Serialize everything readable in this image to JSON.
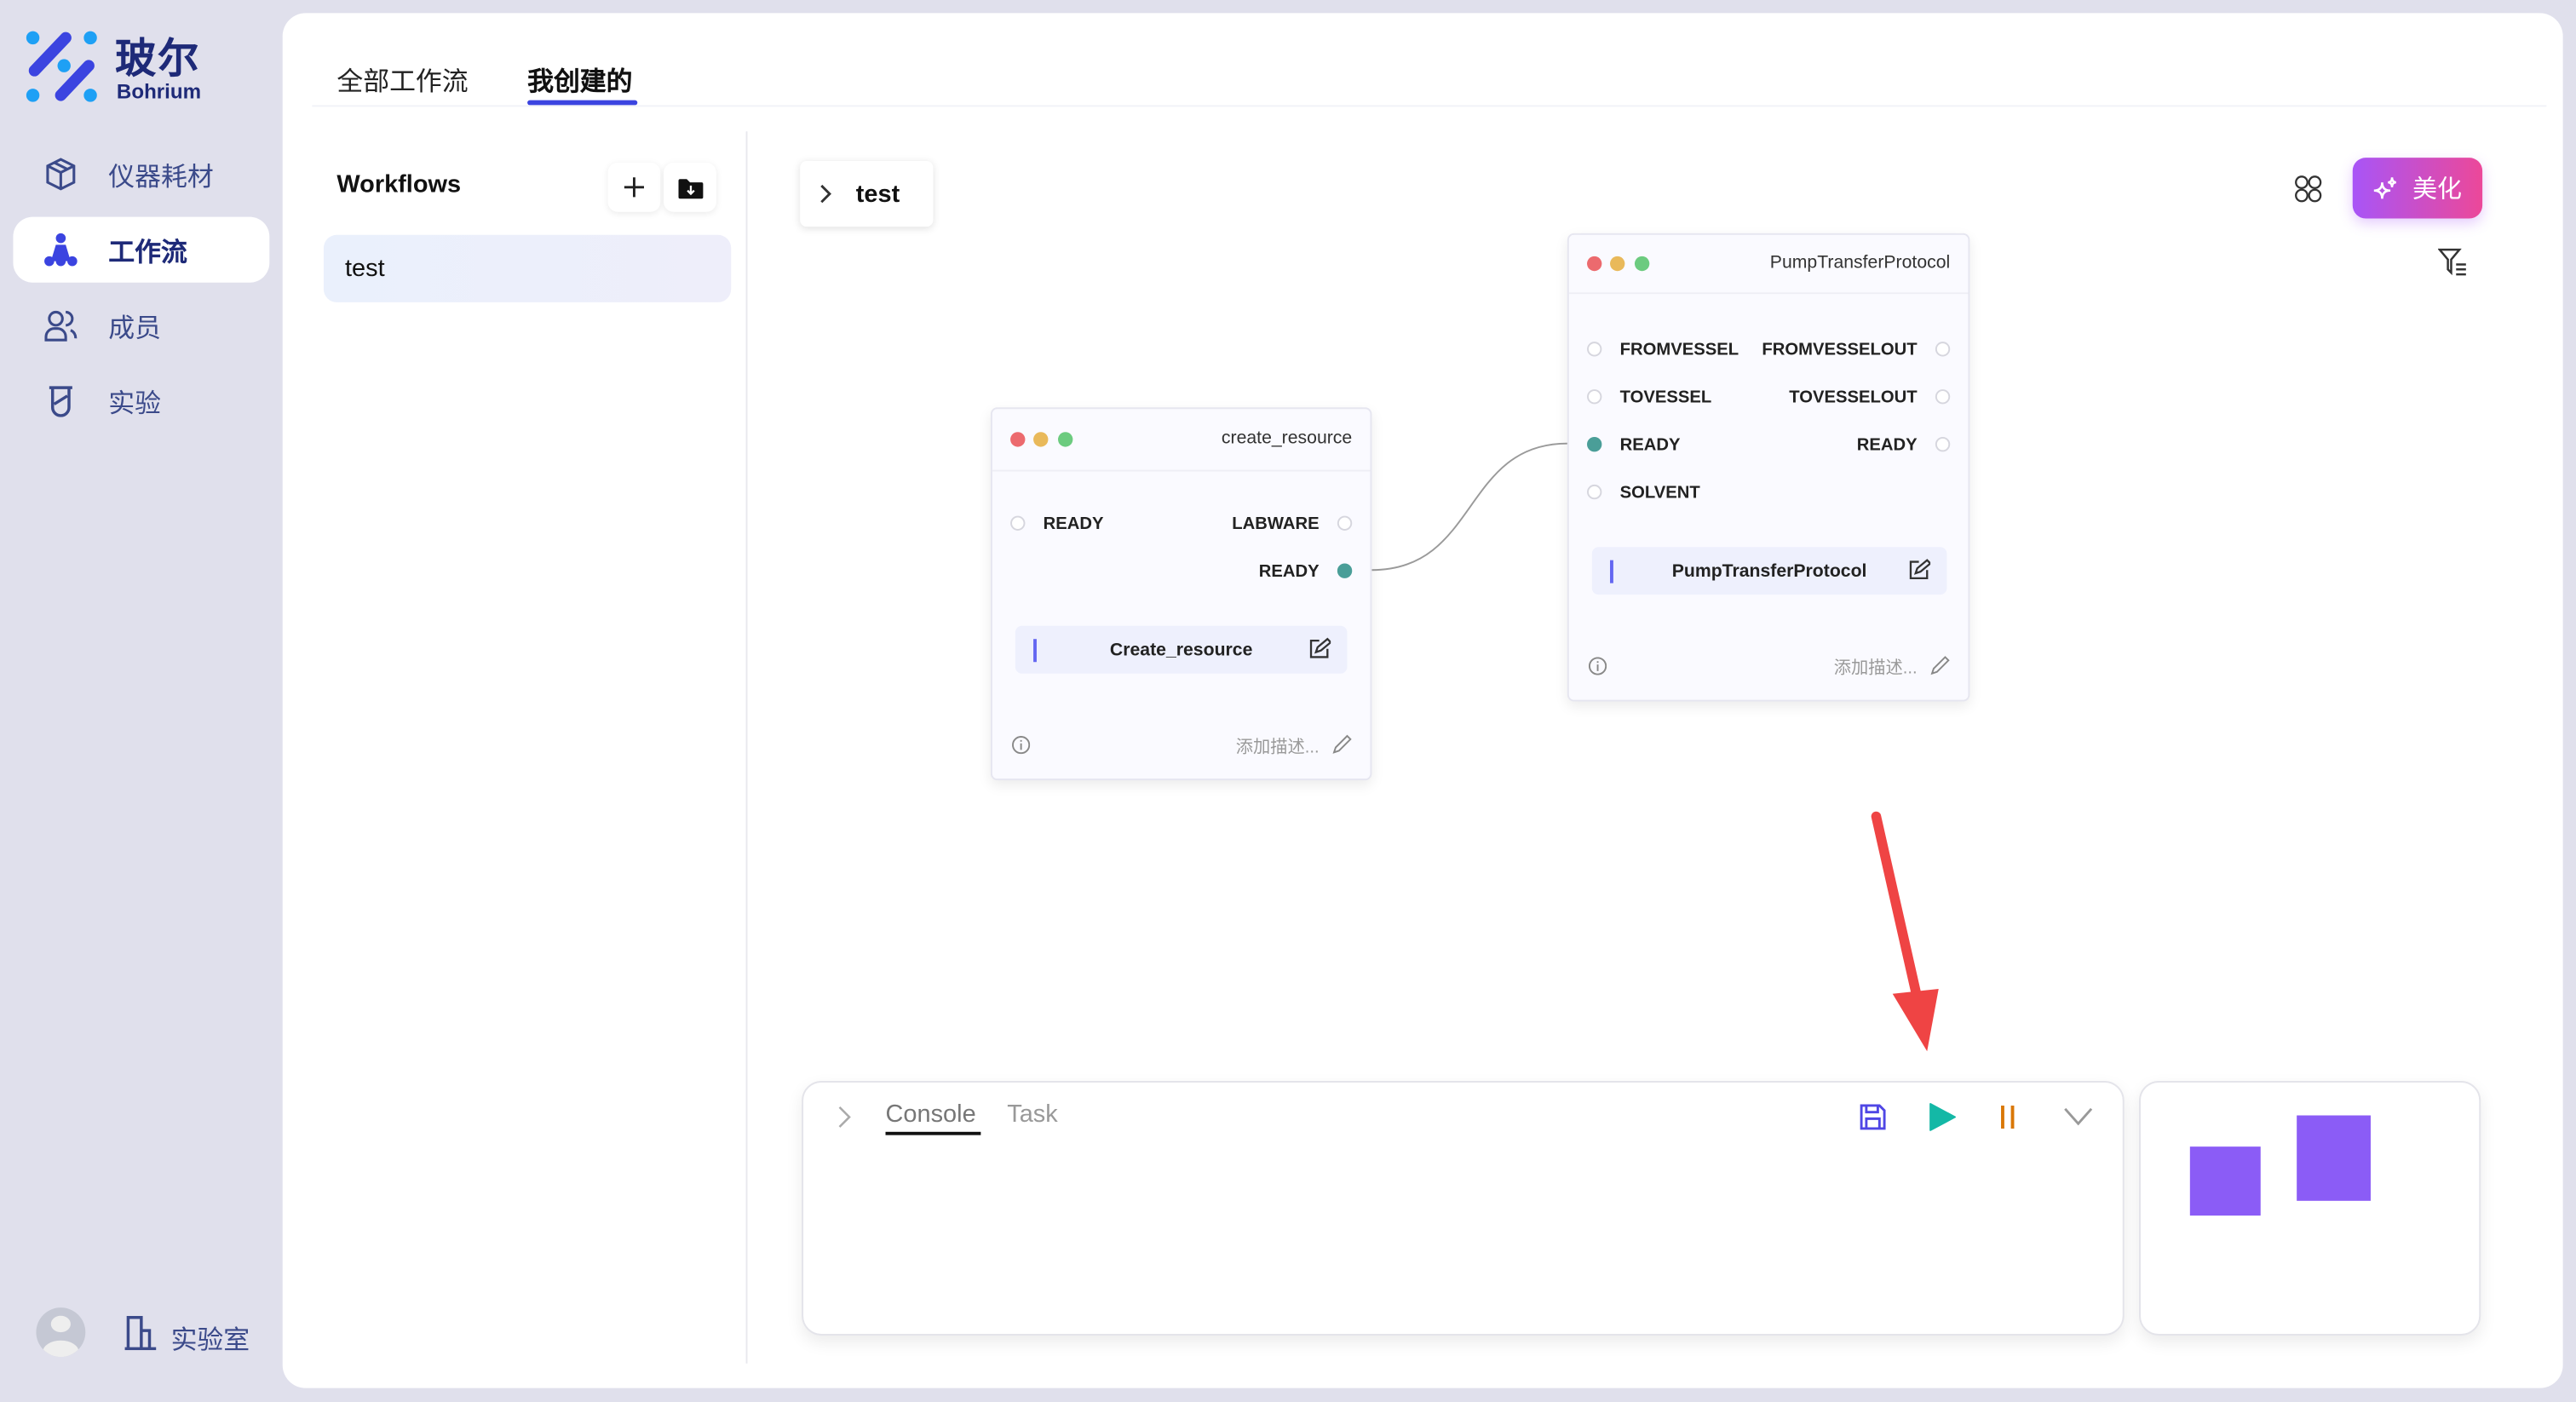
{
  "brand": {
    "name": "玻尔",
    "sub": "Bohrium"
  },
  "sidebar": {
    "items": [
      {
        "label": "仪器耗材",
        "icon": "box-icon"
      },
      {
        "label": "工作流",
        "icon": "workflow-icon",
        "active": true
      },
      {
        "label": "成员",
        "icon": "members-icon"
      },
      {
        "label": "实验",
        "icon": "beaker-icon"
      }
    ],
    "footer": {
      "lab_label": "实验室"
    }
  },
  "tabs": [
    {
      "label": "全部工作流"
    },
    {
      "label": "我创建的",
      "active": true
    }
  ],
  "workflows": {
    "title": "Workflows",
    "items": [
      "test"
    ]
  },
  "canvas": {
    "breadcrumb": "test",
    "beautify_label": "美化",
    "nodes": [
      {
        "title": "create_resource",
        "inputs": [
          "READY"
        ],
        "outputs": [
          "LABWARE",
          "READY"
        ],
        "function": "Create_resource",
        "desc_placeholder": "添加描述..."
      },
      {
        "title": "PumpTransferProtocol",
        "inputs": [
          "FROMVESSEL",
          "TOVESSEL",
          "READY",
          "SOLVENT"
        ],
        "outputs": [
          "FROMVESSELOUT",
          "TOVESSELOUT",
          "READY"
        ],
        "function": "PumpTransferProtocol",
        "desc_placeholder": "添加描述..."
      }
    ],
    "edge": {
      "from": "create_resource.READY",
      "to": "PumpTransferProtocol.READY"
    }
  },
  "console": {
    "tabs": [
      "Console",
      "Task"
    ],
    "active_tab": "Console"
  },
  "colors": {
    "accent": "#3b44e0",
    "port_on": "#4a9e98",
    "play": "#14b8a6",
    "pause": "#d97706",
    "minimap": "#8b5cf6",
    "arrow": "#ef4444"
  }
}
